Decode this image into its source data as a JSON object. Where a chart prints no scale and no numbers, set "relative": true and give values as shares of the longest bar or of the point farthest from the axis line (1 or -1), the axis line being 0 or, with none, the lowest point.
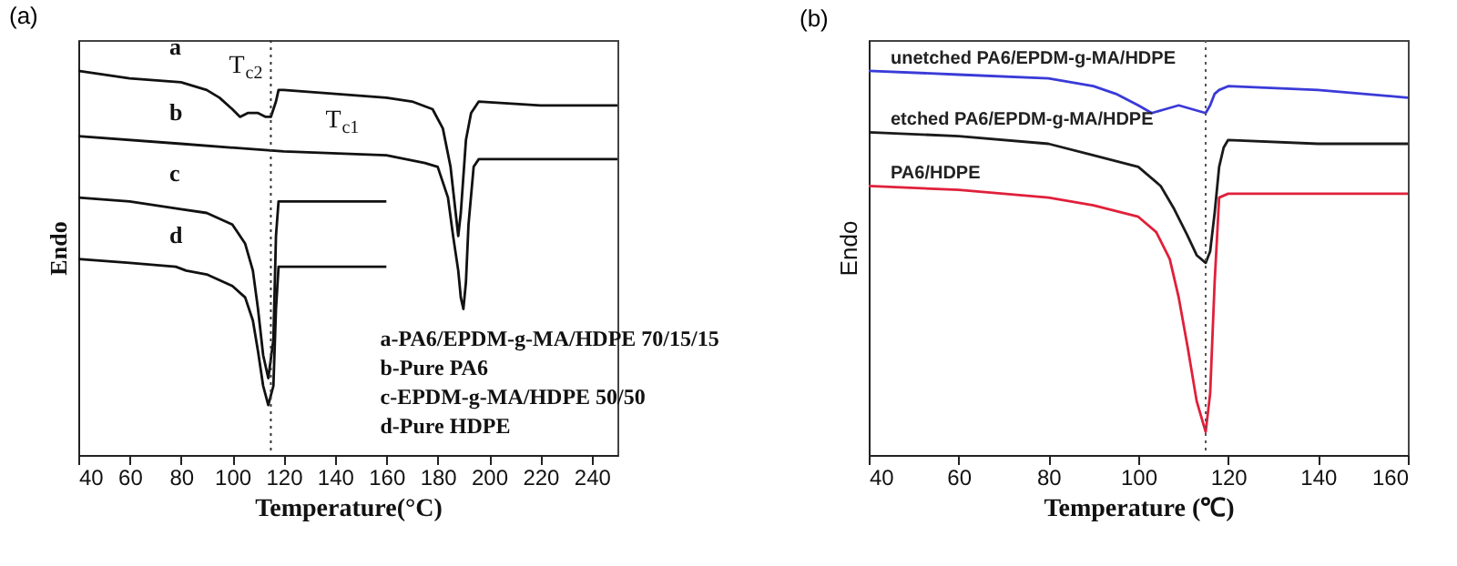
{
  "chart_data": [
    {
      "type": "line",
      "title": "(a)",
      "xlabel": "Temperature(°C)",
      "ylabel": "Endo",
      "relative": true,
      "xlim": [
        40,
        250
      ],
      "xticks": [
        40,
        60,
        80,
        100,
        120,
        140,
        160,
        180,
        200,
        220,
        240
      ],
      "ref_lines": [
        {
          "axis": "x",
          "value": 115,
          "line_style": "dotted",
          "color": "#333333"
        }
      ],
      "annotations": [
        {
          "text": "T$_{c2}$",
          "x": 103,
          "y": 0.88
        },
        {
          "text": "T$_{c1}$",
          "x": 115,
          "y": 0.88
        },
        "a-PA6/EPDM-g-MA/HDPE 70/15/15",
        "b-Pure PA6",
        "c-EPDM-g-MA/HDPE 50/50",
        "d-Pure HDPE"
      ],
      "series": [
        {
          "name": "a",
          "color": "#111111",
          "x": [
            40,
            60,
            80,
            90,
            95,
            100,
            103,
            106,
            110,
            113,
            115,
            117,
            118,
            120,
            140,
            160,
            170,
            178,
            182,
            185,
            187,
            188,
            189,
            191,
            193,
            196,
            220,
            250
          ],
          "values": [
            1.0,
            0.98,
            0.97,
            0.95,
            0.93,
            0.9,
            0.88,
            0.89,
            0.89,
            0.88,
            0.88,
            0.92,
            0.95,
            0.95,
            0.94,
            0.93,
            0.92,
            0.9,
            0.85,
            0.75,
            0.63,
            0.57,
            0.63,
            0.82,
            0.89,
            0.92,
            0.91,
            0.91
          ]
        },
        {
          "name": "b",
          "color": "#111111",
          "x": [
            40,
            80,
            120,
            160,
            175,
            180,
            184,
            186,
            188,
            189,
            190,
            191,
            192,
            194,
            196,
            200,
            250
          ],
          "values": [
            0.83,
            0.81,
            0.79,
            0.78,
            0.76,
            0.75,
            0.67,
            0.57,
            0.48,
            0.41,
            0.38,
            0.45,
            0.6,
            0.75,
            0.77,
            0.77,
            0.77
          ]
        },
        {
          "name": "c",
          "color": "#111111",
          "x": [
            40,
            60,
            80,
            90,
            100,
            105,
            108,
            110,
            112,
            114,
            116,
            117,
            118,
            160
          ],
          "values": [
            0.67,
            0.66,
            0.64,
            0.63,
            0.6,
            0.55,
            0.48,
            0.38,
            0.26,
            0.2,
            0.3,
            0.57,
            0.66,
            0.66
          ]
        },
        {
          "name": "d",
          "color": "#111111",
          "x": [
            40,
            60,
            78,
            82,
            90,
            100,
            105,
            108,
            110,
            112,
            114,
            116,
            117,
            118,
            120,
            160
          ],
          "values": [
            0.51,
            0.5,
            0.49,
            0.48,
            0.47,
            0.44,
            0.41,
            0.35,
            0.27,
            0.18,
            0.13,
            0.18,
            0.38,
            0.49,
            0.49,
            0.49
          ]
        }
      ]
    },
    {
      "type": "line",
      "title": "(b)",
      "xlabel": "Temperature (℃)",
      "ylabel": "Endo",
      "relative": true,
      "xlim": [
        40,
        160
      ],
      "xticks": [
        40,
        60,
        80,
        100,
        120,
        140,
        160
      ],
      "ref_lines": [
        {
          "axis": "x",
          "value": 115,
          "line_style": "dotted",
          "color": "#555555"
        }
      ],
      "series": [
        {
          "name": "unetched PA6/EPDM-g-MA/HDPE",
          "color": "#3a3ad8",
          "x": [
            40,
            60,
            80,
            90,
            95,
            100,
            103,
            106,
            109,
            112,
            115,
            116,
            117,
            118,
            120,
            140,
            160
          ],
          "values": [
            1.0,
            0.99,
            0.98,
            0.96,
            0.94,
            0.91,
            0.89,
            0.9,
            0.91,
            0.9,
            0.89,
            0.91,
            0.94,
            0.95,
            0.96,
            0.95,
            0.93
          ]
        },
        {
          "name": "etched PA6/EPDM-g-MA/HDPE",
          "color": "#1a1a1a",
          "x": [
            40,
            60,
            80,
            90,
            100,
            105,
            108,
            111,
            113,
            115,
            116,
            117,
            118,
            119,
            120,
            140,
            160
          ],
          "values": [
            0.84,
            0.83,
            0.81,
            0.78,
            0.75,
            0.7,
            0.64,
            0.57,
            0.52,
            0.5,
            0.53,
            0.63,
            0.75,
            0.8,
            0.82,
            0.81,
            0.81
          ]
        },
        {
          "name": "PA6/HDPE",
          "color": "#e0203a",
          "x": [
            40,
            60,
            80,
            90,
            100,
            104,
            107,
            109,
            111,
            113,
            115,
            116,
            117,
            118,
            120,
            140,
            160
          ],
          "values": [
            0.7,
            0.69,
            0.67,
            0.65,
            0.62,
            0.58,
            0.51,
            0.41,
            0.28,
            0.14,
            0.06,
            0.16,
            0.45,
            0.67,
            0.68,
            0.68,
            0.68
          ]
        }
      ]
    }
  ]
}
